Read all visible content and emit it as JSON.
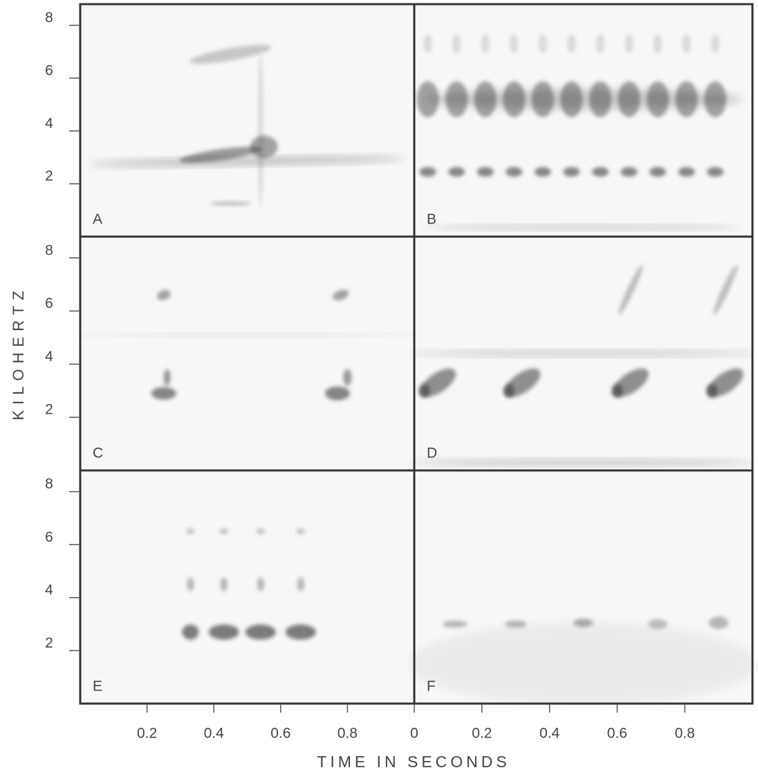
{
  "y_axis": {
    "label": "KILOHERTZ",
    "ticks": [
      2,
      4,
      6,
      8
    ],
    "lim": [
      0,
      8.8
    ]
  },
  "x_axis": {
    "label": "TIME IN SECONDS",
    "left_ticks": [
      0.2,
      0.4,
      0.6,
      0.8
    ],
    "right_ticks": [
      0,
      0.2,
      0.4,
      0.6,
      0.8
    ],
    "lim": [
      0,
      1
    ]
  },
  "panels": [
    "A",
    "B",
    "C",
    "D",
    "E",
    "F"
  ]
}
